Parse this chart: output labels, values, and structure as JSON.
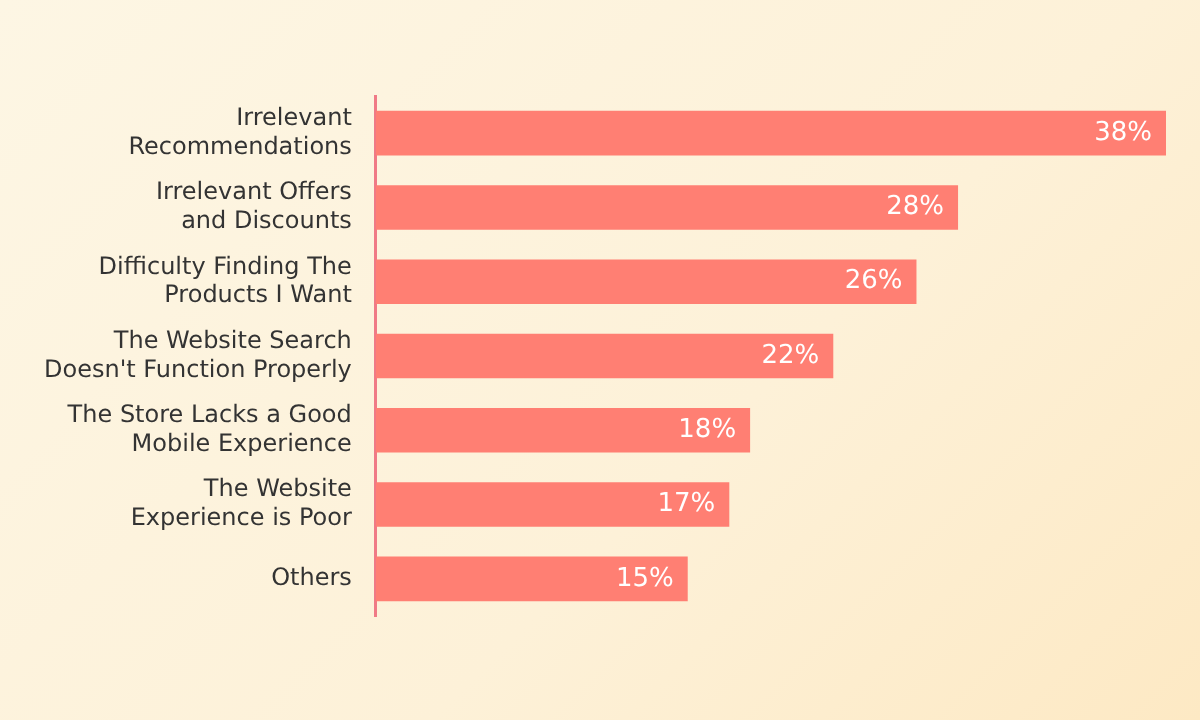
{
  "chart_data": {
    "type": "bar",
    "orientation": "horizontal",
    "categories": [
      "Irrelevant\nRecommendations",
      "Irrelevant Offers\nand Discounts",
      "Difficulty Finding The\nProducts I Want",
      "The Website Search\nDoesn't Function Properly",
      "The Store Lacks a Good\nMobile Experience",
      "The Website\nExperience is Poor",
      "Others"
    ],
    "values": [
      38,
      28,
      26,
      22,
      18,
      17,
      15
    ],
    "value_labels": [
      "38%",
      "28%",
      "26%",
      "22%",
      "18%",
      "17%",
      "15%"
    ],
    "color": "#ff7f73",
    "xlim": [
      0,
      38
    ],
    "tick_labels": "y",
    "legend": false
  }
}
